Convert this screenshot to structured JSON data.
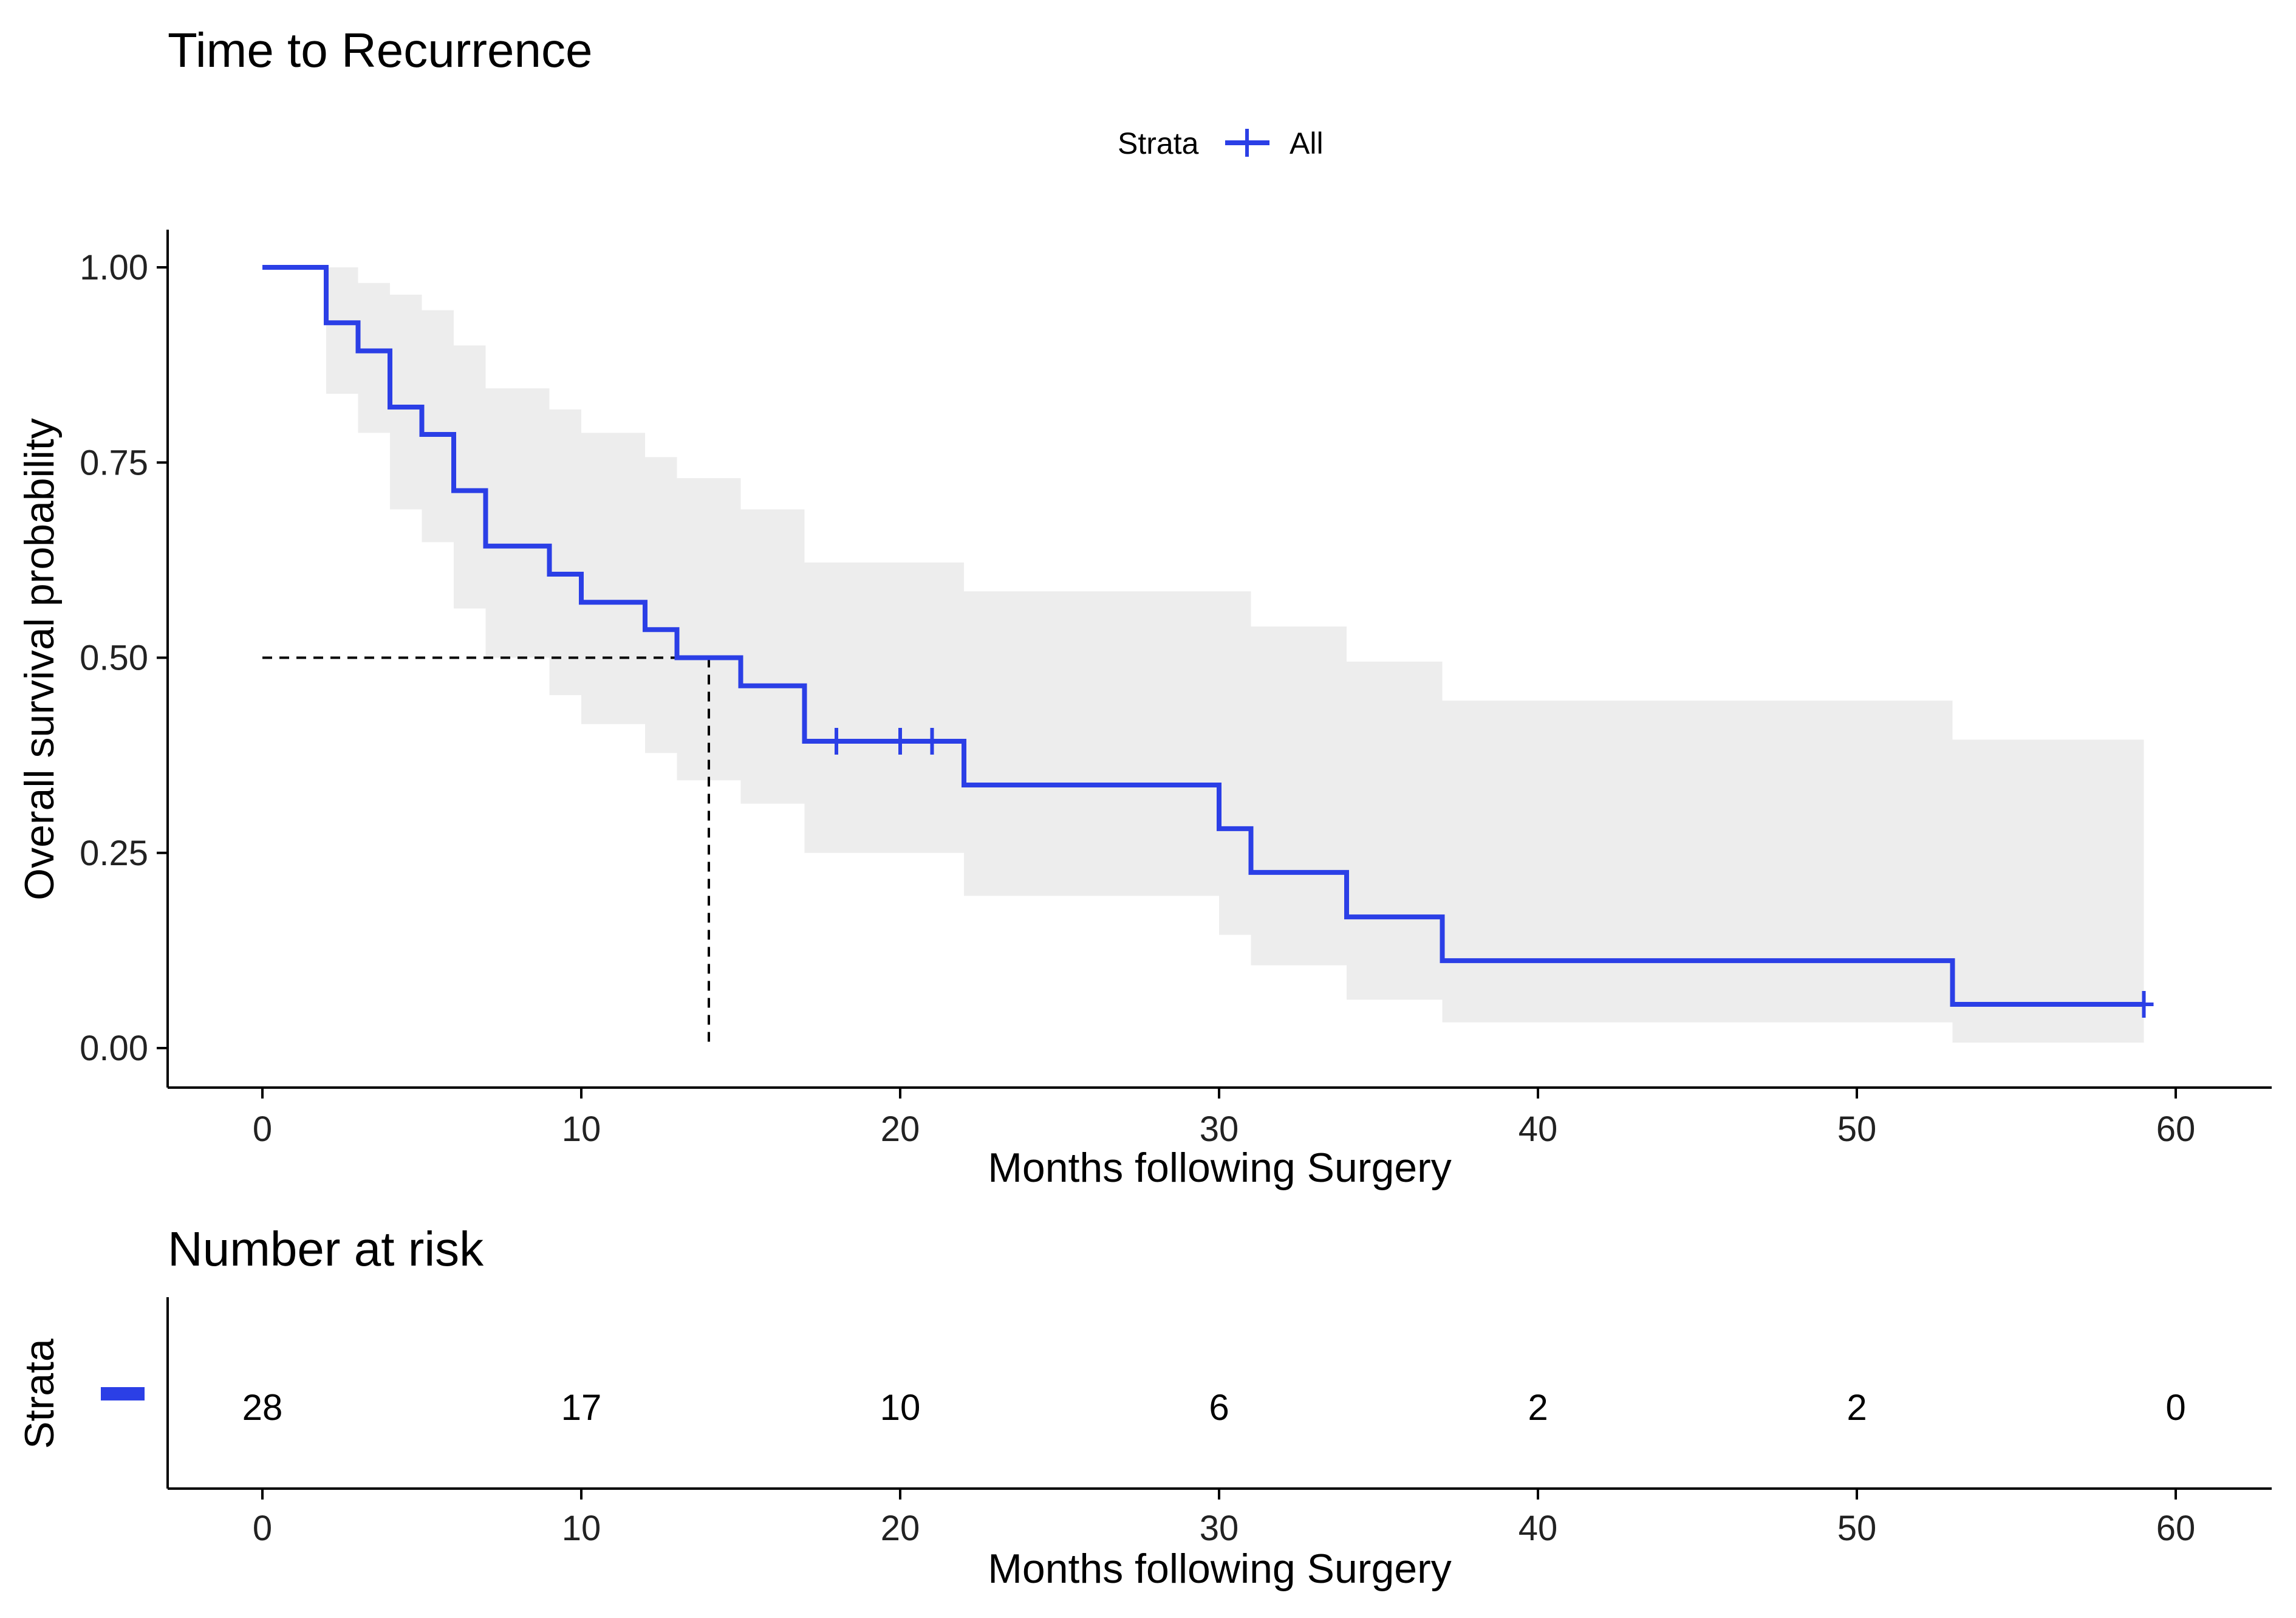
{
  "chart_data": [
    {
      "type": "line",
      "subtype": "kaplan-meier step",
      "title": "Time to Recurrence",
      "xlabel": "Months following Surgery",
      "ylabel": "Overall survival probability",
      "xlim": [
        -3,
        63
      ],
      "ylim": [
        0,
        1.05
      ],
      "x_ticks": [
        0,
        10,
        20,
        30,
        40,
        50,
        60
      ],
      "y_ticks": [
        0,
        0.25,
        0.5,
        0.75,
        1.0
      ],
      "y_tick_labels": [
        "0.00",
        "0.25",
        "0.50",
        "0.75",
        "1.00"
      ],
      "grid": false,
      "legend": {
        "title": "Strata",
        "position": "top",
        "entries": [
          "All"
        ]
      },
      "series": [
        {
          "name": "All",
          "color": "#2B3FE6",
          "times": [
            0,
            2,
            3,
            4,
            5,
            6,
            7,
            9,
            10,
            12,
            13,
            15,
            17,
            22,
            30,
            31,
            34,
            37,
            53,
            59
          ],
          "survival": [
            1.0,
            0.929,
            0.893,
            0.821,
            0.786,
            0.714,
            0.643,
            0.607,
            0.571,
            0.536,
            0.5,
            0.464,
            0.393,
            0.337,
            0.281,
            0.225,
            0.168,
            0.112,
            0.056,
            0.056
          ],
          "ci_lower": [
            1.0,
            0.838,
            0.788,
            0.69,
            0.648,
            0.563,
            0.5,
            0.452,
            0.415,
            0.378,
            0.343,
            0.313,
            0.25,
            0.195,
            0.145,
            0.106,
            0.062,
            0.033,
            0.007,
            0.007
          ],
          "ci_upper": [
            1.0,
            1.0,
            0.98,
            0.965,
            0.945,
            0.9,
            0.845,
            0.818,
            0.788,
            0.757,
            0.73,
            0.69,
            0.622,
            0.585,
            0.585,
            0.54,
            0.495,
            0.445,
            0.395,
            0.365
          ],
          "censored": [
            {
              "x": 18,
              "y": 0.393
            },
            {
              "x": 20,
              "y": 0.393
            },
            {
              "x": 21,
              "y": 0.393
            },
            {
              "x": 59,
              "y": 0.056
            }
          ]
        }
      ],
      "ci_color": "#EDEDED",
      "median_line": {
        "x": 14,
        "y": 0.5
      }
    },
    {
      "type": "table",
      "title": "Number at risk",
      "ylabel": "Strata",
      "xlabel": "Months following Surgery",
      "x_ticks": [
        0,
        10,
        20,
        30,
        40,
        50,
        60
      ],
      "rows": [
        {
          "name": "All",
          "color": "#2B3FE6",
          "values": [
            28,
            17,
            10,
            6,
            2,
            2,
            0
          ]
        }
      ]
    }
  ]
}
